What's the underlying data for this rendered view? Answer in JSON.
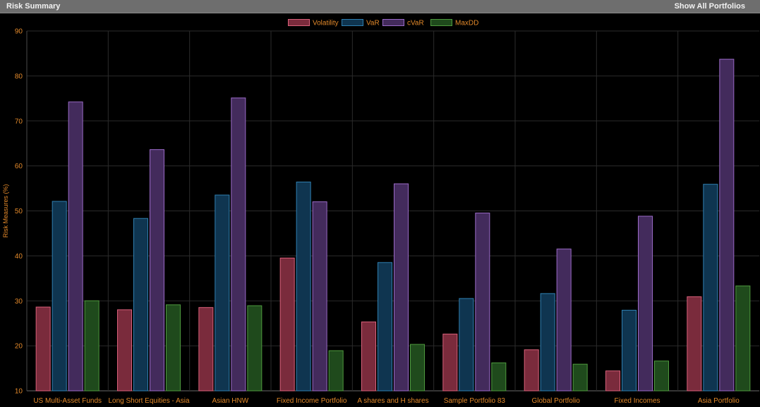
{
  "header": {
    "title": "Risk Summary",
    "action_label": "Show All Portfolios"
  },
  "chart_data": {
    "type": "bar",
    "title": "",
    "xlabel": "",
    "ylabel": "Risk Measures (%)",
    "ylim": [
      10,
      90
    ],
    "yticks": [
      10,
      20,
      30,
      40,
      50,
      60,
      70,
      80,
      90
    ],
    "grid": true,
    "legend_position": "top-center",
    "categories": [
      "US Multi-Asset Funds",
      "Long Short Equities - Asia",
      "Asian HNW",
      "Fixed Income Portfolio",
      "A shares and H shares",
      "Sample Portfolio 83",
      "Global Portfolio",
      "Fixed Incomes",
      "Asia Portfolio"
    ],
    "series": [
      {
        "name": "Volatility",
        "fill": "#7a2b3c",
        "stroke": "#d8607a",
        "values": [
          28.7,
          28.1,
          28.6,
          39.6,
          25.4,
          22.7,
          19.2,
          14.5,
          31.0
        ]
      },
      {
        "name": "VaR",
        "fill": "#0f3550",
        "stroke": "#2f7fb0",
        "values": [
          52.2,
          48.4,
          53.6,
          56.5,
          38.6,
          30.6,
          31.7,
          28.0,
          56.0
        ]
      },
      {
        "name": "cVaR",
        "fill": "#432b5c",
        "stroke": "#9a6ac7",
        "values": [
          74.3,
          63.7,
          75.2,
          52.1,
          56.1,
          49.6,
          41.6,
          48.9,
          83.8
        ]
      },
      {
        "name": "MaxDD",
        "fill": "#1f4a1c",
        "stroke": "#4e9a3e",
        "values": [
          30.1,
          29.2,
          29.0,
          19.0,
          20.4,
          16.3,
          16.0,
          16.7,
          33.4
        ]
      }
    ]
  }
}
